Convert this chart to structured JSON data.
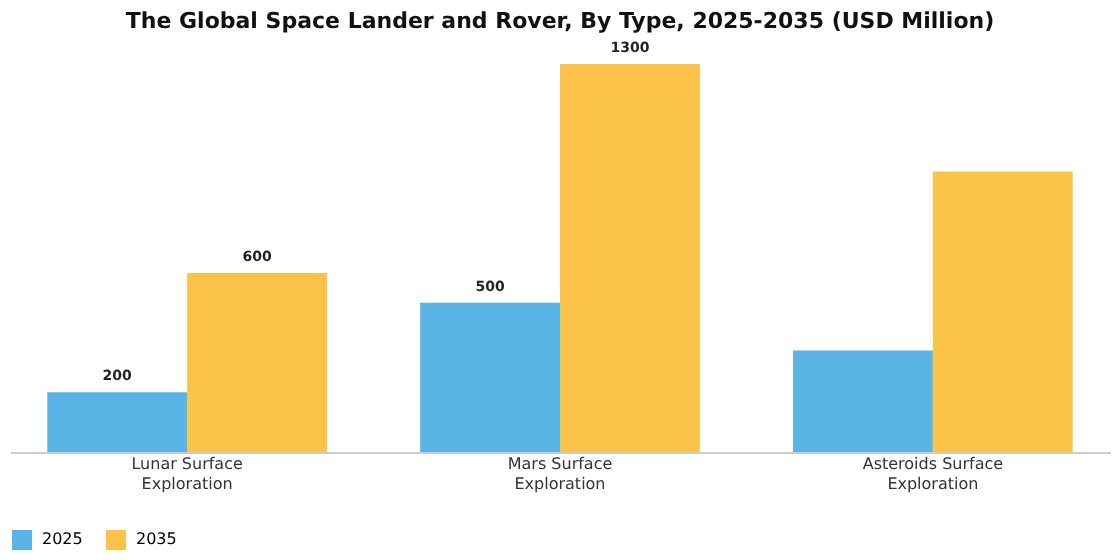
{
  "chart_data": {
    "type": "bar",
    "title": "The Global Space Lander and Rover, By Type, 2025-2035 (USD Million)",
    "categories": [
      "Lunar Surface Exploration",
      "Mars Surface Exploration",
      "Asteroids Surface Exploration"
    ],
    "series": [
      {
        "name": "2025",
        "color": "#5ab4e5",
        "values": [
          200,
          500,
          340
        ],
        "value_labels": [
          "200",
          "500",
          null
        ]
      },
      {
        "name": "2035",
        "color": "#fbc34a",
        "values": [
          600,
          1300,
          940
        ],
        "value_labels": [
          "600",
          "1300",
          null
        ]
      }
    ],
    "legend": "bottom",
    "grid": false
  }
}
